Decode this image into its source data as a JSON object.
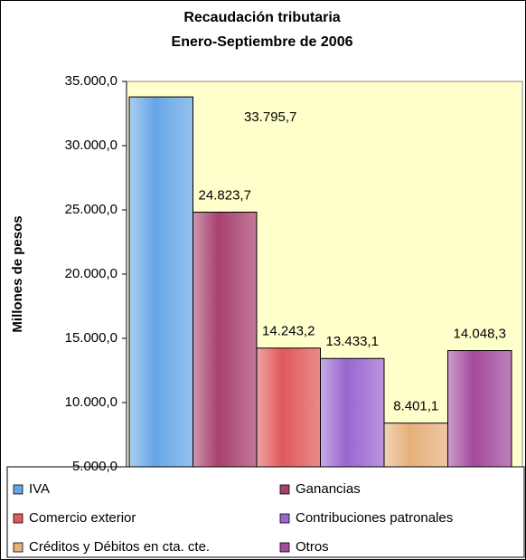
{
  "chart_data": {
    "type": "bar",
    "title": "Recaudación tributaria",
    "subtitle": "Enero-Septiembre de 2006",
    "ylabel": "Millones de pesos",
    "ylim": [
      5000,
      35000
    ],
    "yticks": [
      {
        "value": 5000,
        "label": "5.000,0"
      },
      {
        "value": 10000,
        "label": "10.000,0"
      },
      {
        "value": 15000,
        "label": "15.000,0"
      },
      {
        "value": 20000,
        "label": "20.000,0"
      },
      {
        "value": 25000,
        "label": "25.000,0"
      },
      {
        "value": 30000,
        "label": "30.000,0"
      },
      {
        "value": 35000,
        "label": "35.000,0"
      }
    ],
    "grid": false,
    "legend": "bottom",
    "series": [
      {
        "name": "IVA",
        "color": "#66a6e6",
        "values": [
          33795.7
        ],
        "value_labels": [
          "33.795,7"
        ]
      },
      {
        "name": "Ganancias",
        "color": "#a8406e",
        "values": [
          24823.7
        ],
        "value_labels": [
          "24.823,7"
        ]
      },
      {
        "name": "Comercio exterior",
        "color": "#e05a5a",
        "values": [
          14243.2
        ],
        "value_labels": [
          "14.243,2"
        ]
      },
      {
        "name": "Contribuciones patronales",
        "color": "#9a66d0",
        "values": [
          13433.1
        ],
        "value_labels": [
          "13.433,1"
        ]
      },
      {
        "name": "Créditos y Débitos en cta. cte.",
        "color": "#e6b07a",
        "values": [
          8401.1
        ],
        "value_labels": [
          "8.401,1"
        ]
      },
      {
        "name": "Otros",
        "color": "#a24a9c",
        "values": [
          14048.3
        ],
        "value_labels": [
          "14.048,3"
        ]
      }
    ]
  }
}
